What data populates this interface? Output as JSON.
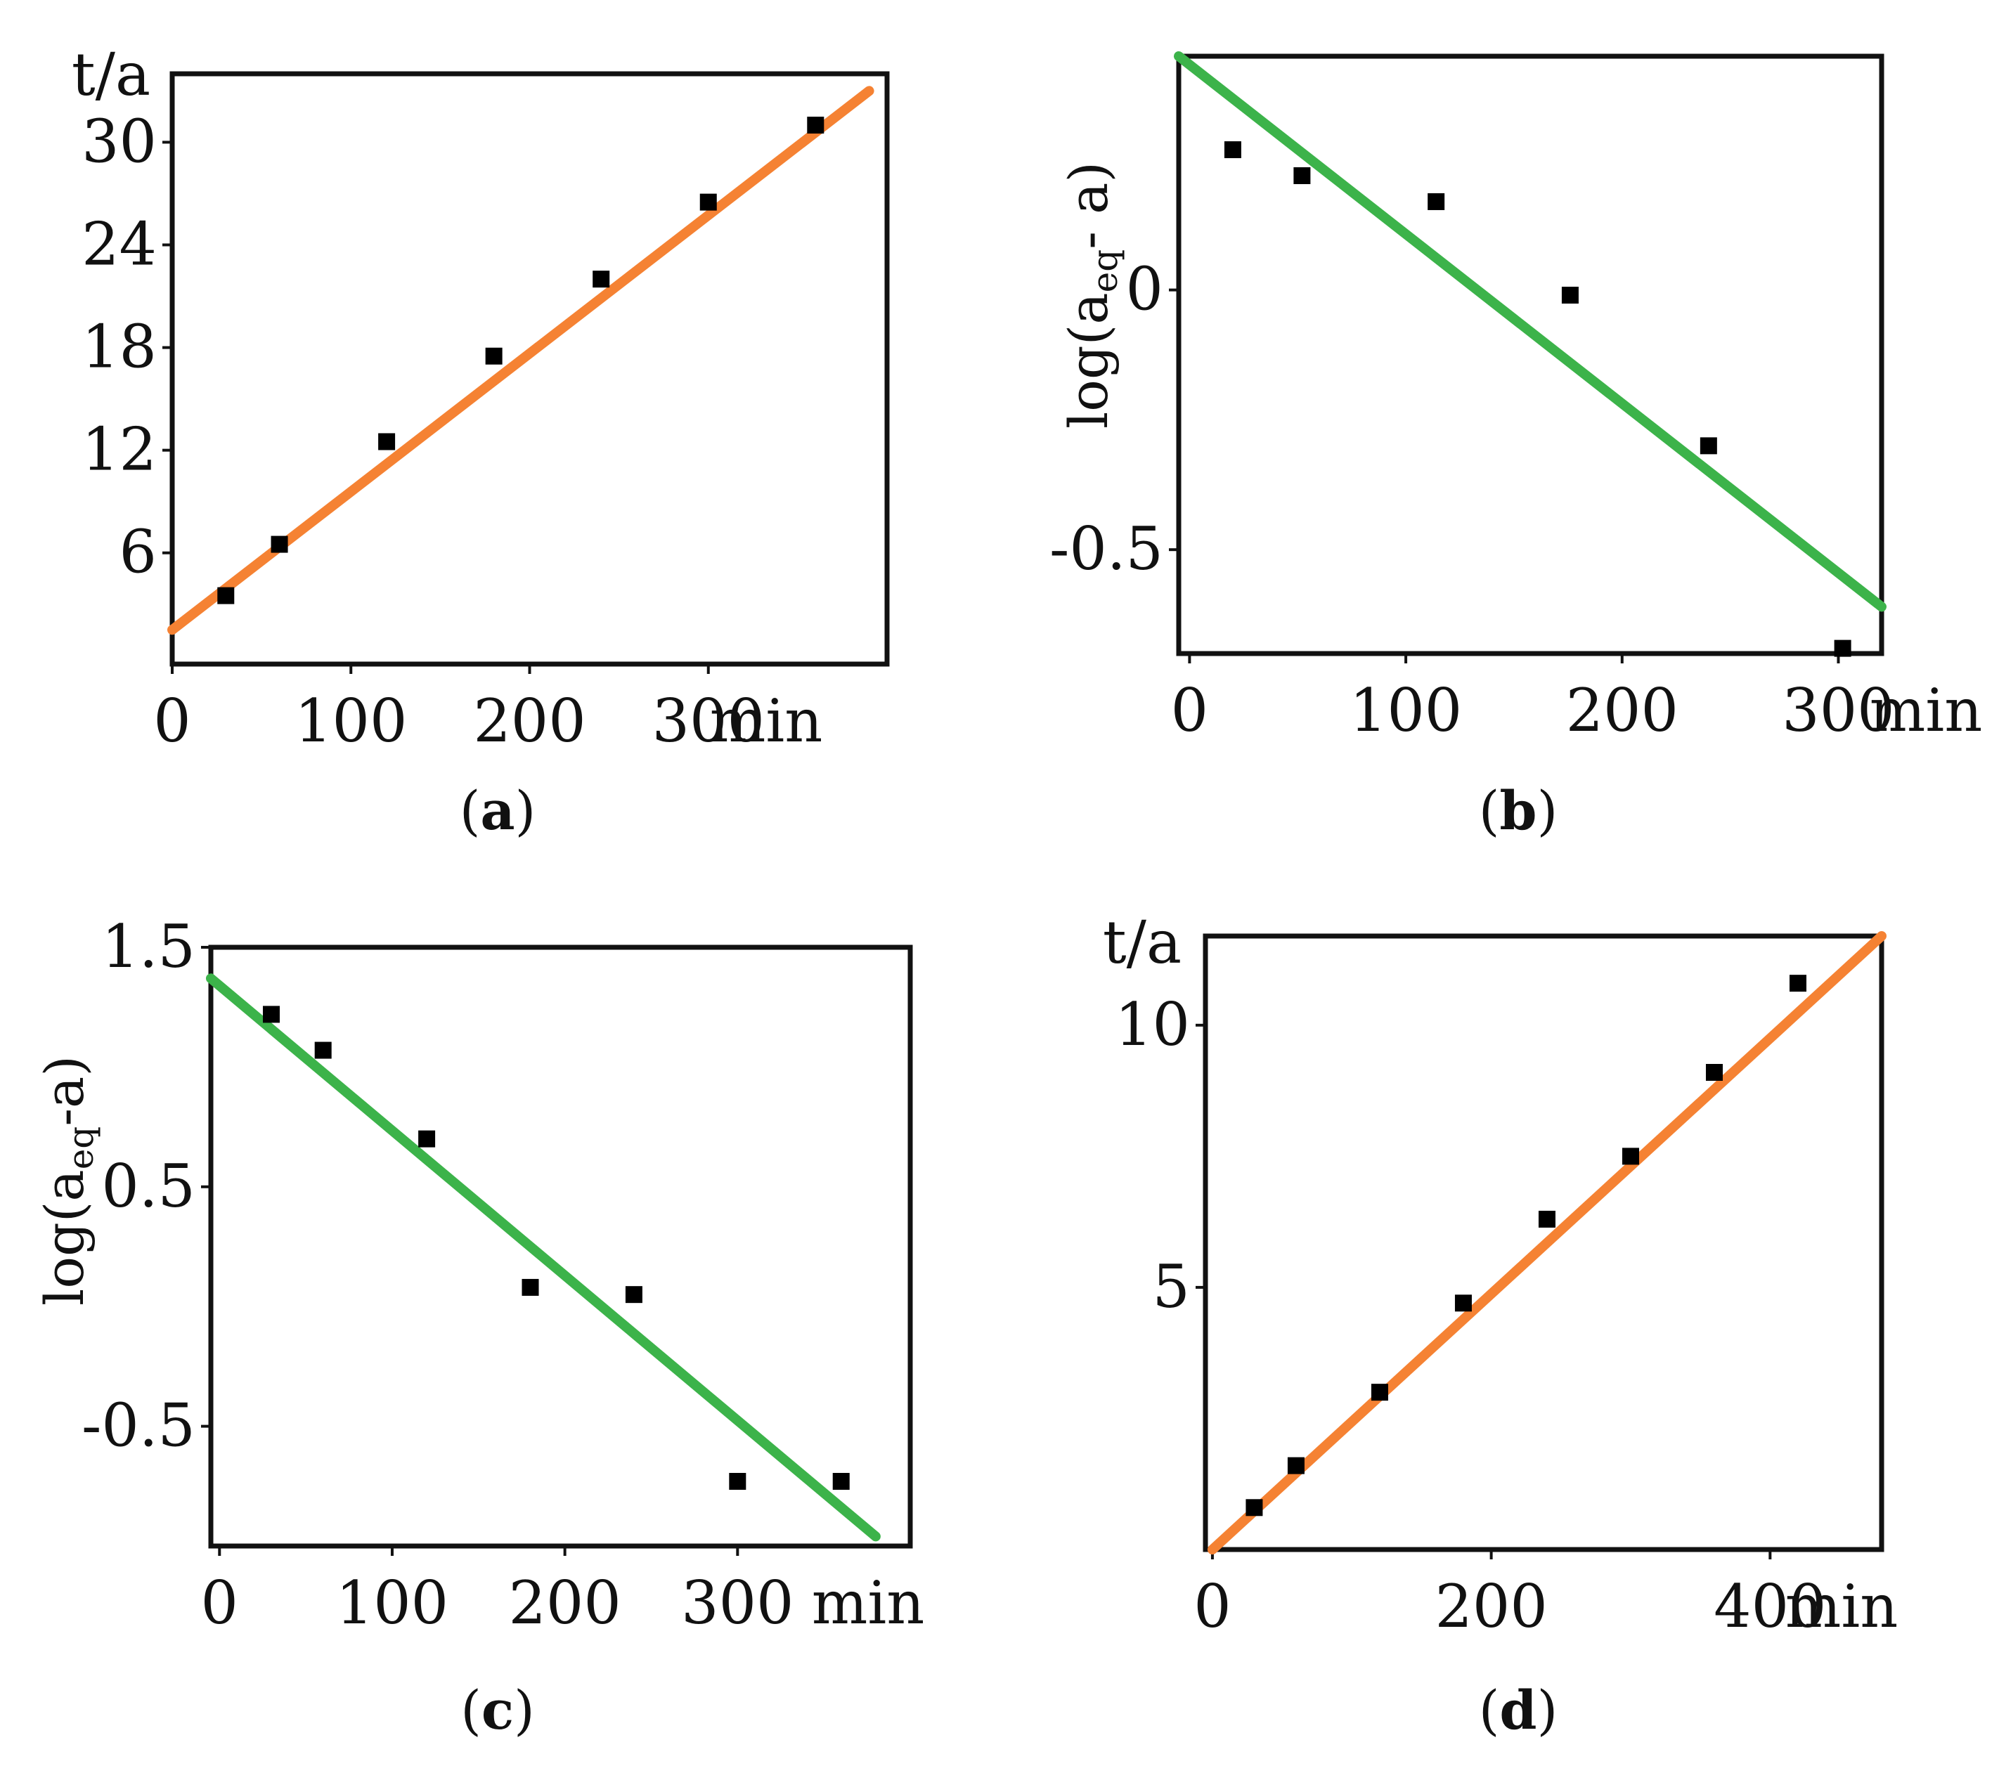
{
  "chart_data": [
    {
      "id": "a",
      "type": "scatter",
      "caption": "a",
      "ylabel": "t/a",
      "xlabel": "min",
      "xlim": [
        0,
        400
      ],
      "ylim": [
        -0.5,
        34
      ],
      "xticks": [
        0,
        100,
        200,
        300
      ],
      "yticks": [
        6,
        12,
        18,
        24,
        30
      ],
      "x": [
        30,
        60,
        120,
        180,
        240,
        300,
        360
      ],
      "y": [
        3.5,
        6.5,
        12.5,
        17.5,
        22,
        26.5,
        31
      ],
      "fit": {
        "x": [
          0,
          390
        ],
        "y": [
          1.5,
          33
        ],
        "color": "#f58233"
      }
    },
    {
      "id": "b",
      "type": "scatter",
      "caption": "b",
      "ylabel_main": "log(a",
      "ylabel_sub": "eq",
      "ylabel_rest": "- a)",
      "xlabel": "min",
      "xlim": [
        -5,
        320
      ],
      "ylim": [
        -0.7,
        0.45
      ],
      "xticks": [
        0,
        100,
        200,
        300
      ],
      "yticks": [
        0,
        -0.5
      ],
      "ytick_labels": [
        "0",
        "-0.5"
      ],
      "x": [
        20,
        52,
        114,
        176,
        240,
        302
      ],
      "y": [
        0.27,
        0.22,
        0.17,
        -0.01,
        -0.3,
        -0.69
      ],
      "fit": {
        "x": [
          -5,
          320
        ],
        "y": [
          0.45,
          -0.61
        ],
        "color": "#3cb34a"
      }
    },
    {
      "id": "c",
      "type": "scatter",
      "caption": "c",
      "ylabel_main": "log(a",
      "ylabel_sub": "eq",
      "ylabel_rest": "-a)",
      "xlabel": "min",
      "xlim": [
        -5,
        400
      ],
      "ylim": [
        -1.0,
        1.5
      ],
      "xticks": [
        0,
        100,
        200,
        300
      ],
      "yticks": [
        1.5,
        0.5,
        -0.5
      ],
      "ytick_labels": [
        "1.5",
        "0.5",
        "-0.5"
      ],
      "x": [
        30,
        60,
        120,
        180,
        240,
        300,
        360
      ],
      "y": [
        1.22,
        1.07,
        0.7,
        0.08,
        0.05,
        -0.73,
        -0.73
      ],
      "fit": {
        "x": [
          -5,
          380
        ],
        "y": [
          1.37,
          -0.96
        ],
        "color": "#3cb34a"
      }
    },
    {
      "id": "d",
      "type": "scatter",
      "caption": "d",
      "ylabel": "t/a",
      "xlabel": "min",
      "xlim": [
        -5,
        480
      ],
      "ylim": [
        0,
        11.7
      ],
      "xticks": [
        0,
        200,
        400
      ],
      "yticks": [
        5,
        10
      ],
      "x": [
        30,
        60,
        120,
        180,
        240,
        300,
        360,
        420
      ],
      "y": [
        0.8,
        1.6,
        3.0,
        4.7,
        6.3,
        7.5,
        9.1,
        10.8
      ],
      "fit": {
        "x": [
          0,
          480
        ],
        "y": [
          0,
          11.7
        ],
        "color": "#f58233"
      }
    }
  ]
}
